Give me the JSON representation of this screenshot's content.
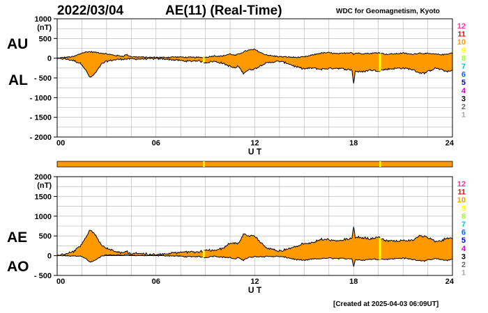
{
  "header": {
    "date": "2022/03/04",
    "title": "AE(11) (Real-Time)",
    "source": "WDC for Geomagnetism, Kyoto"
  },
  "footer": {
    "created": "[Created at 2025-04-03 06:09UT]"
  },
  "colors": {
    "fill": "#FF9900",
    "outline": "#000000",
    "grid": "#b0b0b0",
    "gap": "#FFFF00"
  },
  "level_scale": {
    "labels": [
      "12",
      "11",
      "10",
      "9",
      "8",
      "7",
      "6",
      "5",
      "4",
      "3",
      "2",
      "1"
    ],
    "colors": [
      "#ff3399",
      "#ff0000",
      "#ff9900",
      "#ffff00",
      "#99ff33",
      "#00cccc",
      "#0066ff",
      "#0000cc",
      "#cc00cc",
      "#000000",
      "#666666",
      "#aaaaaa"
    ]
  },
  "chart_data": [
    {
      "type": "area",
      "panel": "AU/AL",
      "series_labels": [
        "AU",
        "AL"
      ],
      "unit": "(nT)",
      "xlabel": "U T",
      "xticks": [
        "00",
        "06",
        "12",
        "18",
        "24"
      ],
      "xlim": [
        0,
        24
      ],
      "ylim": [
        -2000,
        1000
      ],
      "yticks": [
        "1000",
        "500",
        "0",
        "- 500",
        "- 1000",
        "- 1500",
        "- 2000"
      ],
      "grid": true,
      "x": [
        0,
        0.5,
        1,
        1.5,
        1.8,
        2,
        2.3,
        2.7,
        3,
        3.5,
        4,
        4.2,
        4.5,
        5,
        5.5,
        6,
        6.5,
        7,
        7.5,
        8,
        8.5,
        9,
        9.5,
        10,
        10.5,
        10.8,
        11,
        11.3,
        11.6,
        12,
        12.5,
        13,
        13.5,
        14,
        14.5,
        15,
        15.5,
        16,
        16.5,
        17,
        17.5,
        17.9,
        18,
        18.1,
        18.5,
        19,
        19.5,
        20,
        20.5,
        21,
        21.5,
        22,
        22.3,
        22.7,
        23,
        23.5,
        23.8,
        24
      ],
      "au": [
        0,
        20,
        40,
        130,
        160,
        165,
        150,
        130,
        110,
        70,
        50,
        90,
        40,
        30,
        20,
        20,
        20,
        30,
        30,
        20,
        20,
        20,
        60,
        50,
        110,
        70,
        100,
        160,
        200,
        220,
        110,
        60,
        40,
        30,
        20,
        30,
        80,
        130,
        140,
        110,
        130,
        150,
        90,
        130,
        120,
        120,
        140,
        100,
        110,
        130,
        100,
        130,
        120,
        110,
        100,
        90,
        120,
        130
      ],
      "al": [
        0,
        -20,
        -60,
        -150,
        -350,
        -500,
        -390,
        -150,
        -80,
        -40,
        -20,
        -20,
        -20,
        -20,
        -15,
        -15,
        -15,
        -40,
        -60,
        -80,
        -60,
        -110,
        -80,
        -120,
        -210,
        -250,
        -200,
        -380,
        -300,
        -270,
        -150,
        -100,
        -80,
        -130,
        -220,
        -270,
        -250,
        -280,
        -260,
        -250,
        -280,
        -300,
        -650,
        -330,
        -350,
        -300,
        -320,
        -280,
        -260,
        -250,
        -280,
        -370,
        -380,
        -300,
        -250,
        -320,
        -340,
        -310
      ],
      "gaps_hours": [
        8.9,
        19.6
      ]
    },
    {
      "type": "area",
      "panel": "AE/AO",
      "series_labels": [
        "AE",
        "AO"
      ],
      "unit": "(nT)",
      "xlabel": "U T",
      "xticks": [
        "00",
        "06",
        "12",
        "18",
        "24"
      ],
      "xlim": [
        0,
        24
      ],
      "ylim": [
        -500,
        2000
      ],
      "yticks": [
        "2000",
        "1500",
        "1000",
        "500",
        "0",
        "- 500"
      ],
      "grid": true,
      "gaps_hours": [
        8.9,
        19.6
      ]
    }
  ]
}
